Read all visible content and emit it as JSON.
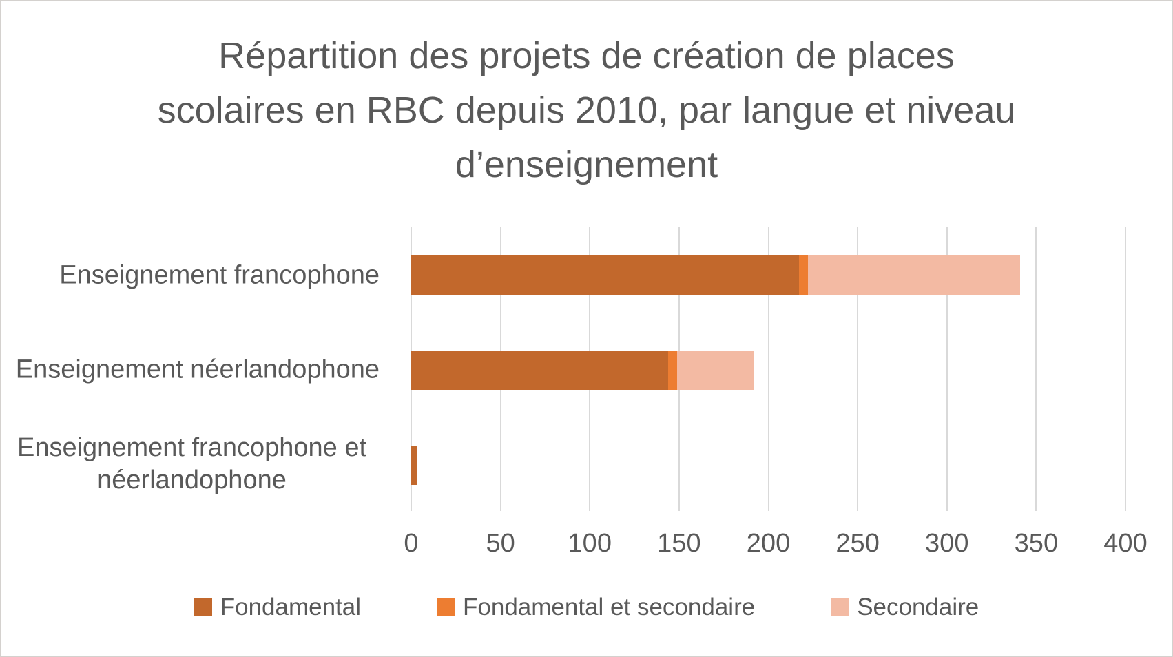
{
  "figure": {
    "title_lines": [
      "Répartition des projets de création de places",
      "scolaires en RBC depuis 2010, par langue et niveau",
      "d’enseignement"
    ]
  },
  "chart_data": {
    "type": "bar",
    "orientation": "horizontal",
    "stacked": true,
    "title": "Répartition des projets de création de places scolaires en RBC depuis 2010, par langue et niveau d’enseignement",
    "categories": [
      "Enseignement francophone",
      "Enseignement néerlandophone",
      "Enseignement francophone et néerlandophone"
    ],
    "series": [
      {
        "name": "Fondamental",
        "color": "#C2682C",
        "values": [
          217,
          144,
          3
        ]
      },
      {
        "name": "Fondamental et secondaire",
        "color": "#ED7D31",
        "values": [
          5,
          5,
          0
        ]
      },
      {
        "name": "Secondaire",
        "color": "#F3BAA3",
        "values": [
          119,
          43,
          0
        ]
      }
    ],
    "totals": [
      341,
      192,
      3
    ],
    "xlabel": "",
    "ylabel": "",
    "xlim": [
      0,
      400
    ],
    "x_ticks": [
      0,
      50,
      100,
      150,
      200,
      250,
      300,
      350,
      400
    ],
    "grid": true,
    "legend_position": "bottom",
    "colors": {
      "gridline": "#D9D9D9",
      "title_text": "#595959",
      "axis_text": "#595959",
      "figure_border": "#D4D1CE",
      "background": "#FFFFFF"
    }
  }
}
